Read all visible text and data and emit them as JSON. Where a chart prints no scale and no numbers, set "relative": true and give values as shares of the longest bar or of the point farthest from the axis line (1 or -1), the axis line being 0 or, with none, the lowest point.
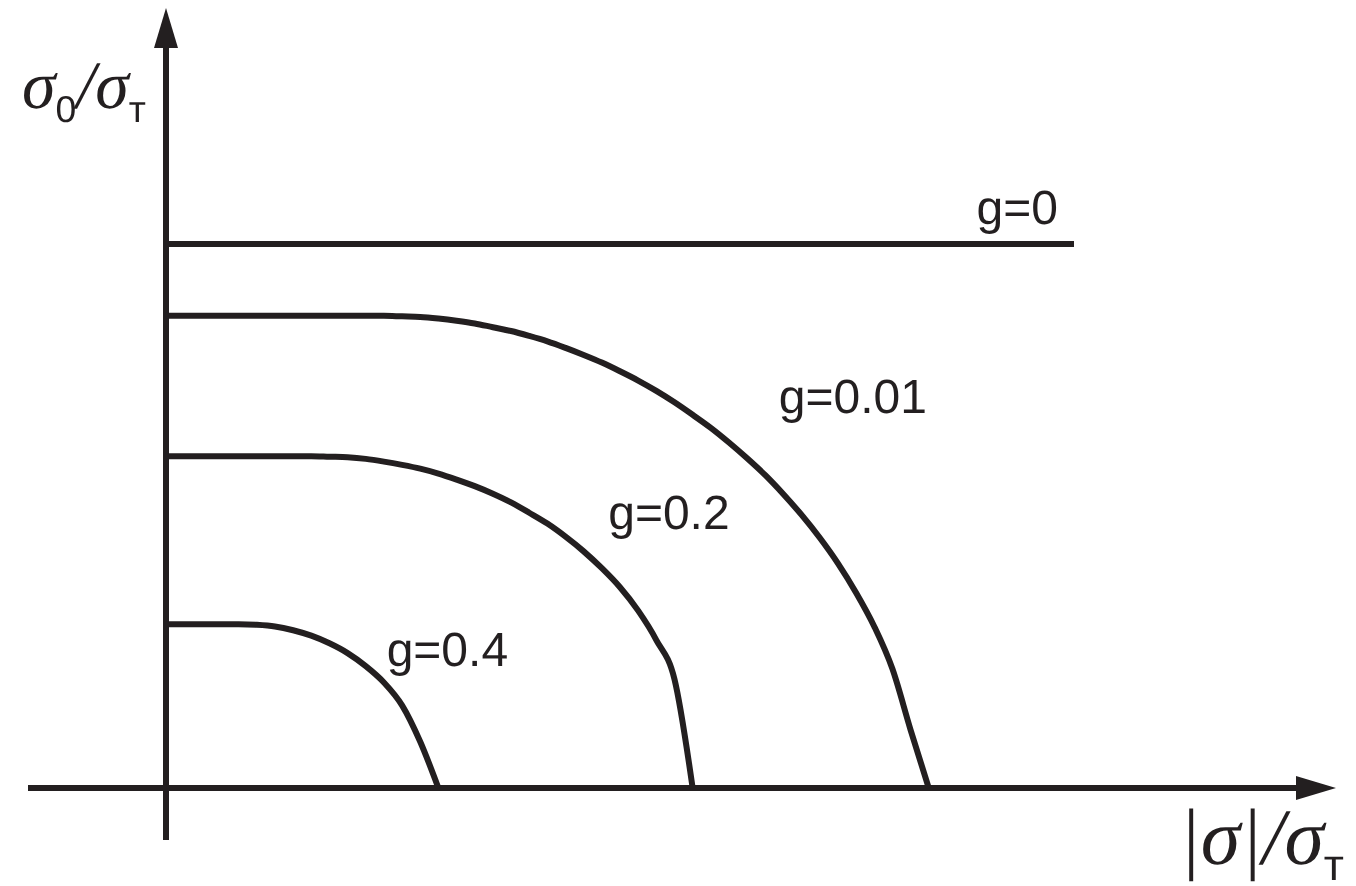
{
  "chart_data": {
    "type": "line",
    "relative": true,
    "xlabel": "|σ|/σ$_{т}$",
    "ylabel": "σ$_{0}$/σ$_{т}$",
    "categories": [
      null,
      null,
      null,
      null,
      null,
      null,
      null,
      null,
      null,
      null,
      null,
      null,
      null,
      null,
      null,
      null,
      null,
      null,
      null,
      null,
      null,
      null,
      null,
      null,
      null,
      null,
      null,
      null,
      null,
      null,
      null,
      null,
      null,
      null,
      null,
      null,
      null,
      null,
      null,
      null,
      null,
      null,
      null,
      null,
      null,
      null,
      null,
      null,
      null,
      null,
      null
    ],
    "series": [
      {
        "name": "g=0",
        "color": "#231f20",
        "values": [
          1,
          1,
          1,
          1,
          1,
          1,
          1,
          1,
          1,
          1,
          1,
          1,
          1,
          1,
          1,
          1,
          1,
          1,
          1,
          1,
          1,
          1,
          1,
          1,
          1,
          1,
          1,
          1,
          1,
          1,
          1,
          1,
          1,
          1,
          1,
          1,
          1,
          1,
          1,
          1,
          1,
          1,
          1,
          1,
          1,
          1,
          1,
          1,
          1,
          1,
          1
        ]
      },
      {
        "name": "g=0.01",
        "color": "#231f20",
        "values": [
          0.868,
          0.868,
          0.868,
          0.868,
          0.868,
          0.868,
          0.868,
          0.868,
          0.868,
          0.868,
          0.868,
          0.868,
          0.868,
          0.867,
          0.866,
          0.863,
          0.859,
          0.854,
          0.847,
          0.84,
          0.831,
          0.821,
          0.809,
          0.796,
          0.782,
          0.766,
          0.749,
          0.73,
          0.709,
          0.686,
          0.662,
          0.635,
          0.606,
          0.575,
          0.54,
          0.502,
          0.46,
          0.413,
          0.359,
          0.297,
          0.219,
          0.107,
          0,
          null,
          null,
          null,
          null,
          null,
          null,
          null,
          null
        ]
      },
      {
        "name": "g=0.2",
        "color": "#231f20",
        "values": [
          0.61,
          0.61,
          0.61,
          0.61,
          0.61,
          0.61,
          0.61,
          0.61,
          0.61,
          0.609,
          0.608,
          0.605,
          0.6,
          0.594,
          0.587,
          0.578,
          0.567,
          0.555,
          0.541,
          0.525,
          0.506,
          0.486,
          0.462,
          0.435,
          0.404,
          0.369,
          0.326,
          0.272,
          0.2,
          0,
          null,
          null,
          null,
          null,
          null,
          null,
          null,
          null,
          null,
          null,
          null,
          null,
          null,
          null,
          null,
          null,
          null,
          null,
          null,
          null,
          null
        ]
      },
      {
        "name": "g=0.4",
        "color": "#231f20",
        "values": [
          0.301,
          0.301,
          0.301,
          0.301,
          0.301,
          0.3,
          0.297,
          0.29,
          0.28,
          0.266,
          0.248,
          0.224,
          0.194,
          0.152,
          0.085,
          0,
          null,
          null,
          null,
          null,
          null,
          null,
          null,
          null,
          null,
          null,
          null,
          null,
          null,
          null,
          null,
          null,
          null,
          null,
          null,
          null,
          null,
          null,
          null,
          null,
          null,
          null,
          null,
          null,
          null,
          null,
          null,
          null,
          null,
          null,
          null
        ]
      }
    ]
  }
}
